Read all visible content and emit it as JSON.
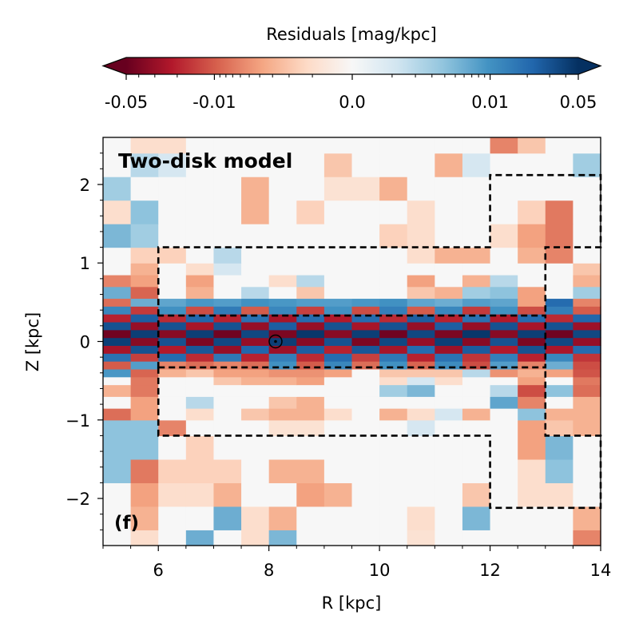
{
  "chart_data": {
    "type": "heatmap",
    "title": "Two-disk model",
    "panel_label": "(f)",
    "xlabel": "R  [kpc]",
    "ylabel": "Z  [kpc]",
    "xlim": [
      5,
      14
    ],
    "ylim": [
      -2.6,
      2.6
    ],
    "x_ticks": [
      6,
      8,
      10,
      12,
      14
    ],
    "x_tick_labels": [
      "6",
      "8",
      "10",
      "12",
      "14"
    ],
    "y_ticks": [
      2,
      1,
      0,
      -1,
      -2
    ],
    "y_tick_labels": [
      "2",
      "1",
      "0",
      "−1",
      "−2"
    ],
    "colorbar": {
      "label": "Residuals  [mag/kpc]",
      "scale": "symlog",
      "range": [
        -0.05,
        0.05
      ],
      "ticks": [
        -0.05,
        -0.01,
        0.0,
        0.01,
        0.05
      ],
      "tick_labels": [
        "-0.05",
        "-0.01",
        "0.0",
        "0.01",
        "0.05"
      ],
      "extend": "both"
    },
    "sun_position": {
      "R": 8.12,
      "Z": 0.0
    },
    "r_bins": [
      5,
      5.5,
      6,
      6.5,
      7,
      7.5,
      8,
      8.5,
      9,
      9.5,
      10,
      10.5,
      11,
      11.5,
      12,
      12.5,
      13,
      13.5,
      14
    ],
    "z_bins": [
      -2.6,
      -2.4,
      -2.1,
      -1.8,
      -1.5,
      -1.2,
      -1.0,
      -0.85,
      -0.7,
      -0.55,
      -0.45,
      -0.35,
      -0.25,
      -0.15,
      -0.05,
      0.05,
      0.15,
      0.25,
      0.35,
      0.45,
      0.55,
      0.7,
      0.85,
      1.0,
      1.2,
      1.5,
      1.8,
      2.1,
      2.4,
      2.6
    ],
    "residuals": [
      [
        0.0,
        -0.001,
        0.0,
        0.006,
        0.0,
        -0.001,
        0.005,
        0.0,
        0.0,
        0.0,
        0.0,
        -0.0008,
        0.0,
        0.0,
        0.0,
        0.0,
        0.0,
        -0.006
      ],
      [
        0.0,
        -0.003,
        0.0,
        0.0,
        0.006,
        -0.001,
        -0.003,
        0.0,
        0.0,
        0.0,
        0.0,
        -0.001,
        0.0,
        0.005,
        0.0,
        0.0,
        0.0,
        -0.003
      ],
      [
        0.0,
        -0.004,
        -0.001,
        -0.001,
        -0.003,
        0.0,
        0.0,
        -0.004,
        -0.003,
        0.0,
        0.0,
        0.0,
        0.0,
        -0.002,
        0.0,
        -0.001,
        -0.001,
        0.0
      ],
      [
        0.004,
        -0.007,
        -0.0015,
        -0.0015,
        -0.0015,
        0.0,
        -0.003,
        -0.003,
        0.0,
        0.0,
        0.0,
        0.0,
        0.0,
        0.0,
        0.0,
        -0.001,
        0.004,
        0.0
      ],
      [
        0.004,
        0.004,
        0.0,
        -0.0015,
        0.0,
        0.0,
        0.0,
        0.0,
        0.0,
        0.0,
        0.0,
        0.0,
        0.0,
        0.0,
        0.0,
        -0.004,
        0.005,
        0.0
      ],
      [
        0.004,
        0.004,
        -0.006,
        0.0,
        0.0,
        0.0,
        -0.0008,
        -0.0008,
        0.0,
        0.0,
        0.0,
        0.001,
        0.0,
        0.0,
        0.0,
        -0.004,
        -0.002,
        -0.003
      ],
      [
        -0.008,
        -0.004,
        0.0,
        -0.001,
        0.0,
        -0.002,
        -0.003,
        -0.003,
        -0.001,
        0.0,
        -0.003,
        -0.001,
        0.001,
        -0.003,
        0.0,
        0.004,
        -0.003,
        -0.003
      ],
      [
        0.0,
        -0.004,
        0.0,
        0.002,
        0.0,
        0.0,
        -0.002,
        -0.003,
        0.0,
        0.0,
        0.0,
        0.0,
        0.0,
        0.0,
        0.007,
        -0.006,
        0.0,
        -0.003
      ],
      [
        -0.003,
        -0.007,
        0.0,
        0.0,
        0.0,
        0.0,
        0.0,
        0.0,
        0.0,
        0.0,
        0.003,
        0.005,
        0.0,
        0.0,
        0.002,
        -0.012,
        0.004,
        -0.008
      ],
      [
        0.0,
        -0.007,
        0.0,
        0.0,
        -0.002,
        -0.003,
        -0.003,
        -0.004,
        0.0,
        0.0,
        -0.001,
        0.001,
        -0.001,
        0.0,
        0.0,
        -0.004,
        0.0,
        -0.007
      ],
      [
        0.009,
        -0.009,
        -0.003,
        -0.002,
        -0.004,
        -0.004,
        -0.005,
        -0.005,
        -0.004,
        0.0,
        -0.002,
        -0.002,
        -0.002,
        0.002,
        -0.005,
        -0.003,
        -0.004,
        -0.011
      ],
      [
        -0.01,
        0.008,
        -0.006,
        -0.008,
        -0.006,
        -0.008,
        0.01,
        -0.01,
        0.012,
        -0.008,
        0.01,
        -0.009,
        0.011,
        -0.012,
        0.008,
        -0.006,
        0.006,
        -0.012
      ],
      [
        0.018,
        -0.014,
        0.02,
        -0.018,
        0.016,
        -0.02,
        0.014,
        -0.018,
        0.02,
        -0.014,
        0.016,
        -0.02,
        0.018,
        -0.016,
        0.014,
        -0.02,
        0.012,
        -0.016
      ],
      [
        -0.025,
        0.03,
        -0.022,
        0.028,
        -0.03,
        0.022,
        -0.028,
        0.025,
        -0.02,
        0.028,
        -0.025,
        0.02,
        -0.028,
        0.026,
        -0.022,
        0.03,
        -0.024,
        0.02
      ],
      [
        0.04,
        -0.035,
        0.03,
        -0.04,
        0.035,
        -0.03,
        0.04,
        -0.035,
        0.03,
        -0.04,
        0.035,
        -0.03,
        0.04,
        -0.035,
        0.03,
        -0.04,
        0.035,
        -0.03
      ],
      [
        -0.045,
        0.04,
        -0.035,
        0.04,
        -0.045,
        0.035,
        -0.04,
        0.045,
        -0.035,
        0.04,
        -0.045,
        0.035,
        -0.04,
        0.045,
        -0.035,
        0.04,
        -0.045,
        0.035
      ],
      [
        0.03,
        -0.03,
        0.03,
        -0.025,
        0.03,
        -0.03,
        0.025,
        -0.03,
        0.03,
        -0.025,
        0.03,
        -0.03,
        0.025,
        -0.03,
        0.03,
        -0.025,
        0.03,
        -0.028
      ],
      [
        -0.02,
        0.025,
        -0.018,
        0.022,
        -0.02,
        0.018,
        -0.025,
        0.02,
        -0.022,
        0.02,
        -0.018,
        0.025,
        -0.02,
        0.018,
        -0.022,
        0.02,
        -0.018,
        0.022
      ],
      [
        0.012,
        -0.015,
        0.01,
        -0.012,
        0.015,
        -0.01,
        0.012,
        -0.014,
        0.01,
        -0.012,
        0.014,
        -0.01,
        0.012,
        -0.015,
        0.01,
        -0.012,
        0.014,
        -0.01
      ],
      [
        -0.008,
        0.006,
        0.007,
        0.009,
        0.008,
        0.01,
        0.009,
        0.008,
        0.008,
        0.009,
        0.01,
        0.007,
        0.006,
        0.008,
        0.007,
        -0.004,
        0.02,
        -0.006
      ],
      [
        0.006,
        -0.009,
        0.0,
        -0.003,
        0.0,
        0.002,
        0.0,
        -0.002,
        0.0,
        0.0,
        0.0,
        -0.002,
        -0.003,
        0.003,
        0.004,
        -0.004,
        0.0,
        0.003
      ],
      [
        -0.006,
        -0.004,
        0.0,
        -0.004,
        0.0,
        0.0,
        -0.001,
        0.002,
        0.0,
        0.0,
        0.0,
        -0.004,
        0.0,
        -0.003,
        0.002,
        0.0,
        0.0,
        -0.003
      ],
      [
        0.0,
        -0.003,
        0.0,
        -0.001,
        0.001,
        0.0,
        0.0,
        0.0,
        0.0,
        0.0,
        0.0,
        0.0,
        0.0,
        0.0,
        0.0,
        0.0,
        0.0,
        -0.002
      ],
      [
        0.0,
        -0.0015,
        -0.0015,
        0.0,
        0.002,
        0.0,
        0.0,
        0.0,
        0.0,
        0.0,
        0.0,
        -0.001,
        -0.003,
        -0.003,
        0.0,
        -0.003,
        -0.006,
        0.0
      ],
      [
        0.005,
        0.003,
        0.0,
        0.0,
        0.0,
        0.0,
        0.0,
        0.0,
        0.0,
        0.0,
        -0.0015,
        -0.001,
        0.0,
        0.0,
        -0.001,
        -0.004,
        -0.007,
        0.0
      ],
      [
        -0.001,
        0.004,
        0.0,
        0.0,
        0.0,
        -0.003,
        0.0,
        -0.0015,
        0.0,
        0.0,
        0.0,
        -0.001,
        0.0,
        0.0,
        0.0,
        -0.0015,
        -0.007,
        0.0
      ],
      [
        0.003,
        0.0,
        0.0,
        0.0,
        0.0,
        -0.003,
        0.0,
        0.0,
        -0.0008,
        -0.0008,
        -0.003,
        0.0,
        0.0,
        0.0,
        0.0,
        0.0,
        0.0,
        0.0
      ],
      [
        0.0,
        0.002,
        0.001,
        0.0,
        0.0,
        0.0,
        0.0,
        0.0,
        -0.002,
        0.0,
        0.0,
        0.0,
        -0.003,
        0.001,
        0.0,
        0.0,
        0.0,
        0.003
      ],
      [
        0.0,
        -0.001,
        -0.001,
        0.0,
        0.0,
        0.0,
        0.0,
        0.0,
        0.0,
        0.0,
        0.0,
        0.0,
        0.0,
        0.0,
        -0.006,
        -0.002,
        0.0,
        0.0
      ]
    ],
    "model_regions": [
      {
        "name": "thin-disk region",
        "R": [
          6,
          13
        ],
        "Z": [
          -0.33,
          0.33
        ]
      },
      {
        "name": "thick-disk upper region",
        "R": [
          6,
          12,
          13,
          14
        ],
        "Z": [
          0.33,
          1.2,
          2.12
        ]
      },
      {
        "name": "thick-disk lower region",
        "R": [
          6,
          12,
          13,
          14
        ],
        "Z": [
          -0.33,
          -1.2,
          -2.12
        ]
      }
    ]
  }
}
